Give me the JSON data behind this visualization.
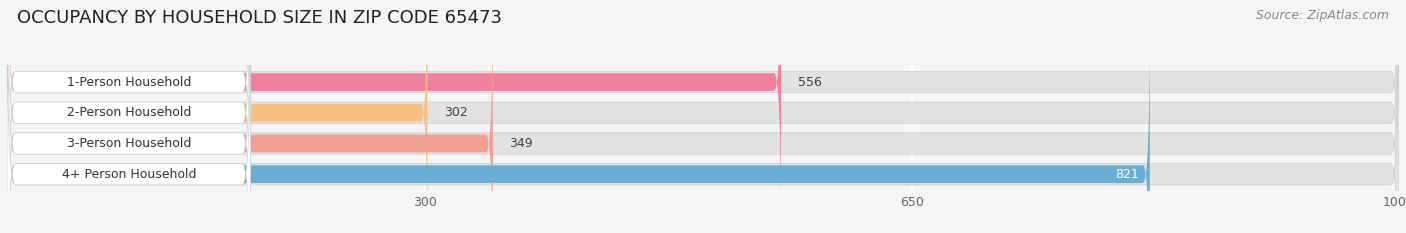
{
  "title": "OCCUPANCY BY HOUSEHOLD SIZE IN ZIP CODE 65473",
  "source": "Source: ZipAtlas.com",
  "categories": [
    "1-Person Household",
    "2-Person Household",
    "3-Person Household",
    "4+ Person Household"
  ],
  "values": [
    556,
    302,
    349,
    821
  ],
  "bar_colors": [
    "#f080a0",
    "#f5c080",
    "#f0a090",
    "#6aaed6"
  ],
  "xlim": [
    0,
    1000
  ],
  "xticks": [
    300,
    650,
    1000
  ],
  "background_color": "#f5f5f5",
  "bar_bg_color": "#e2e2e2",
  "title_fontsize": 13,
  "source_fontsize": 9,
  "label_fontsize": 9,
  "value_fontsize": 9,
  "tick_fontsize": 9
}
